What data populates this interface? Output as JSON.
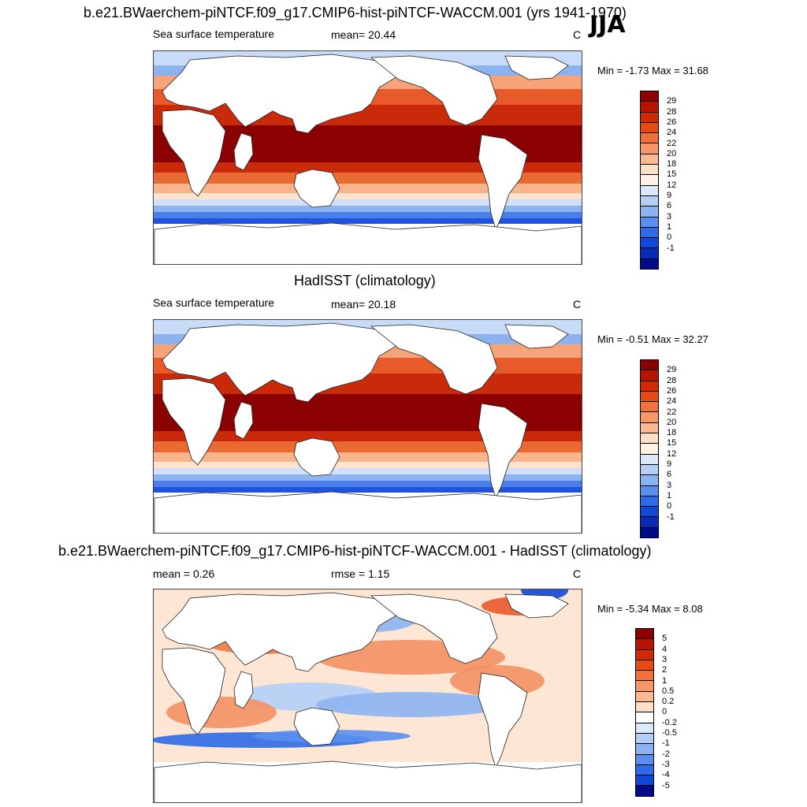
{
  "season": "JJA",
  "panels": [
    {
      "title": "b.e21.BWaerchem-piNTCF.f09_g17.CMIP6-hist-piNTCF-WACCM.001 (yrs 1941-1970)",
      "left_label": "Sea surface temperature",
      "mid_label": "mean=  20.44",
      "unit": "C",
      "minmax": "Min =  -1.73 Max =  31.68",
      "colorbar": {
        "labels": [
          "29",
          "28",
          "26",
          "24",
          "22",
          "20",
          "18",
          "15",
          "12",
          "9",
          "6",
          "3",
          "1",
          "0",
          "-1"
        ],
        "colors": [
          "#8b0000",
          "#b81400",
          "#d22a00",
          "#e84a14",
          "#f4703a",
          "#f99668",
          "#fcb98f",
          "#fde0c5",
          "#fff3e6",
          "#dbe9fb",
          "#b3cff7",
          "#8bb3f2",
          "#5a8ff0",
          "#2f6ae8",
          "#1148d9",
          "#0a2bb5",
          "#000b8a"
        ]
      },
      "map_type": "sst"
    },
    {
      "title": "HadISST (climatology)",
      "left_label": "Sea surface temperature",
      "mid_label": "mean=  20.18",
      "unit": "C",
      "minmax": "Min =  -0.51 Max =  32.27",
      "colorbar": {
        "labels": [
          "29",
          "28",
          "26",
          "24",
          "22",
          "20",
          "18",
          "15",
          "12",
          "9",
          "6",
          "3",
          "1",
          "0",
          "-1"
        ],
        "colors": [
          "#8b0000",
          "#b81400",
          "#d22a00",
          "#e84a14",
          "#f4703a",
          "#f99668",
          "#fcb98f",
          "#fde0c5",
          "#fff3e6",
          "#dbe9fb",
          "#b3cff7",
          "#8bb3f2",
          "#5a8ff0",
          "#2f6ae8",
          "#1148d9",
          "#0a2bb5",
          "#000b8a"
        ]
      },
      "map_type": "sst"
    },
    {
      "title": "b.e21.BWaerchem-piNTCF.f09_g17.CMIP6-hist-piNTCF-WACCM.001 - HadISST (climatology)",
      "left_label": "mean =   0.26",
      "mid_label": "rmse =   1.15",
      "unit": "C",
      "minmax": "Min =  -5.34 Max =   8.08",
      "colorbar": {
        "labels": [
          "5",
          "4",
          "3",
          "2",
          "1",
          "0.5",
          "0.2",
          "0",
          "-0.2",
          "-0.5",
          "-1",
          "-2",
          "-3",
          "-4",
          "-5"
        ],
        "colors": [
          "#8b0000",
          "#b81400",
          "#d22a00",
          "#e84a14",
          "#f4703a",
          "#f99668",
          "#fcb98f",
          "#fde0c5",
          "#ffffff",
          "#dbe9fb",
          "#b3cff7",
          "#8bb3f2",
          "#5a8ff0",
          "#2f6ae8",
          "#1148d9",
          "#000b8a"
        ]
      },
      "map_type": "diff"
    }
  ]
}
